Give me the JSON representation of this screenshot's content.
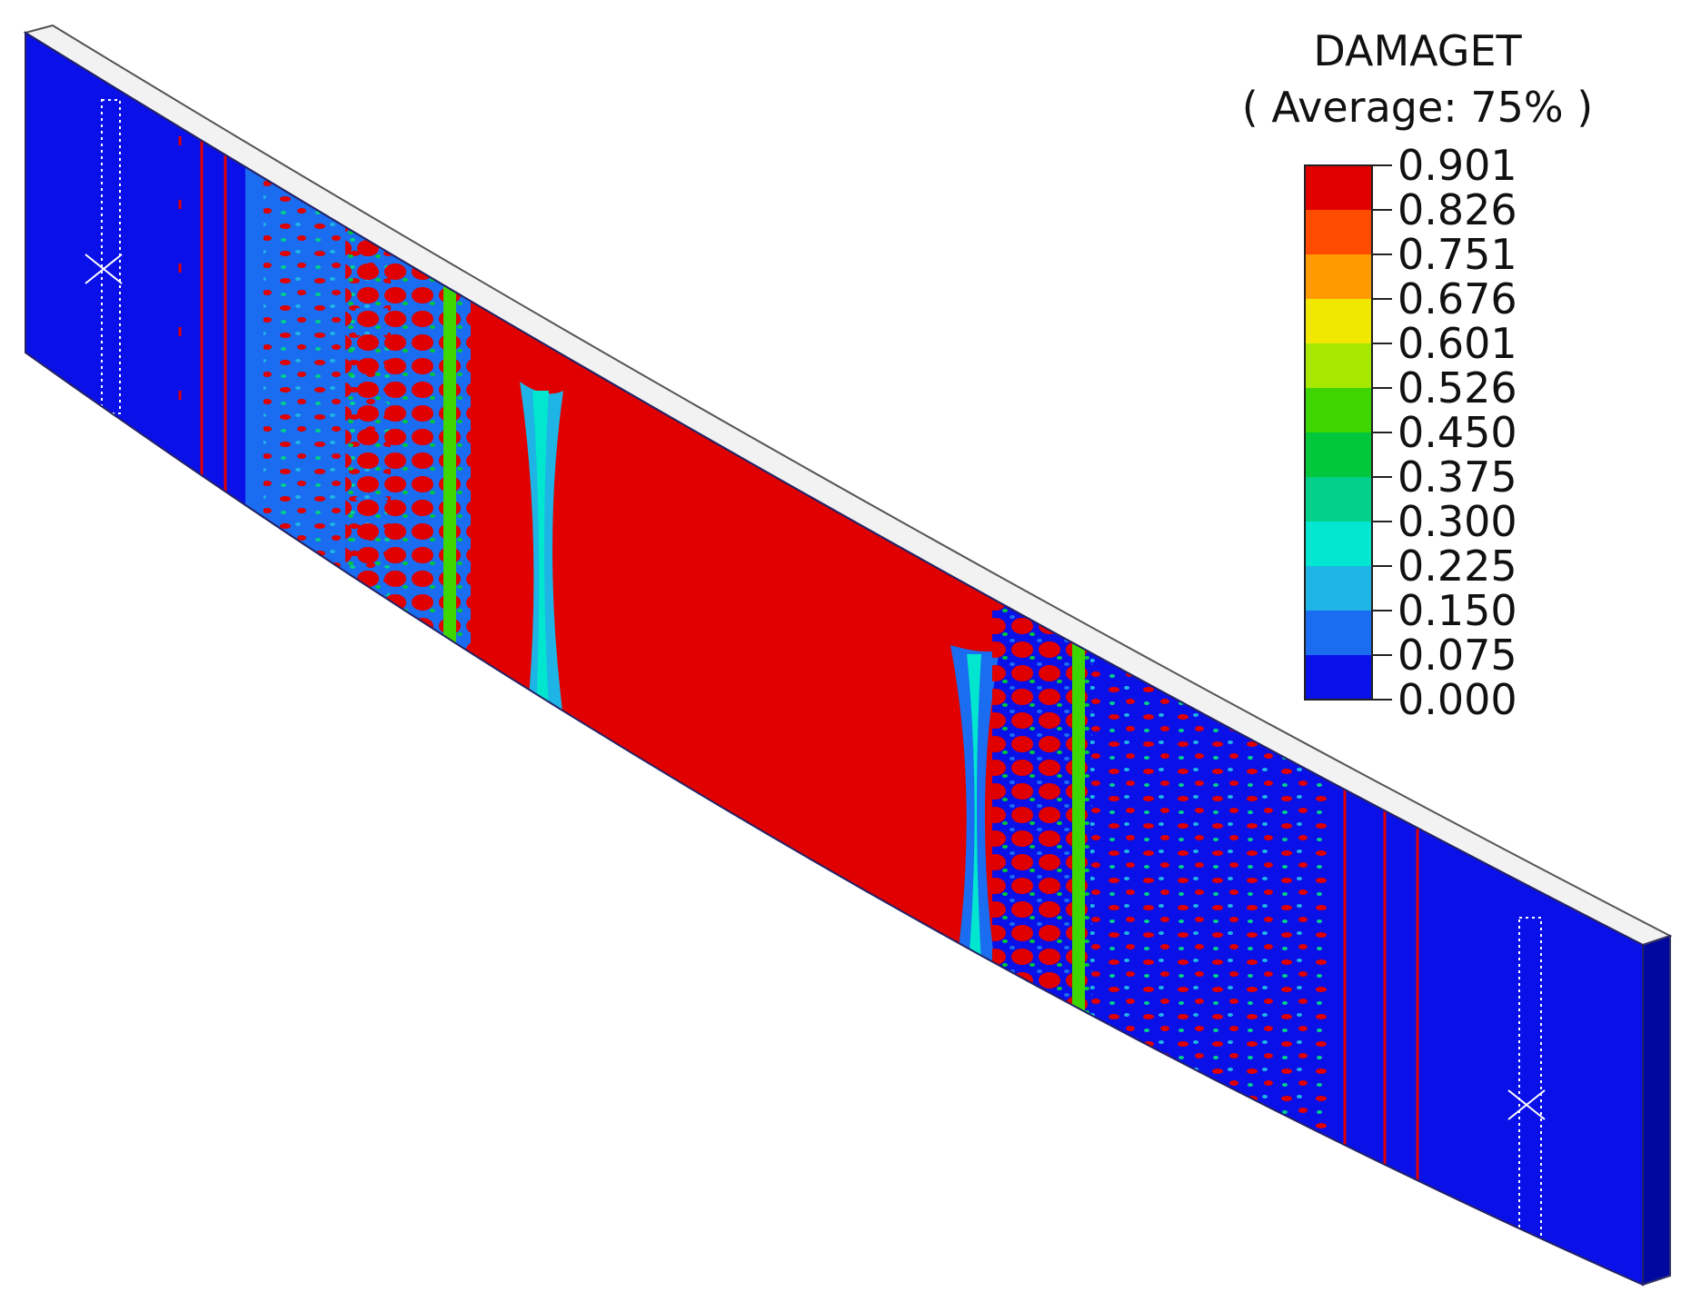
{
  "legend": {
    "title": "DAMAGET",
    "subtitle": "( Average: 75% )",
    "ticks": [
      "0.901",
      "0.826",
      "0.751",
      "0.676",
      "0.601",
      "0.526",
      "0.450",
      "0.375",
      "0.300",
      "0.225",
      "0.150",
      "0.075",
      "0.000"
    ],
    "colors": [
      "#e00000",
      "#ff4b00",
      "#ff9a00",
      "#f0e800",
      "#a6e800",
      "#3ed600",
      "#00c83a",
      "#00d08a",
      "#00e6cf",
      "#1eb4e6",
      "#1a6cf0",
      "#0a10e8"
    ]
  },
  "beam": {
    "base_color": "#0a10e8",
    "damaged_color": "#e00000",
    "top_face_color": "#e8e8e8"
  }
}
